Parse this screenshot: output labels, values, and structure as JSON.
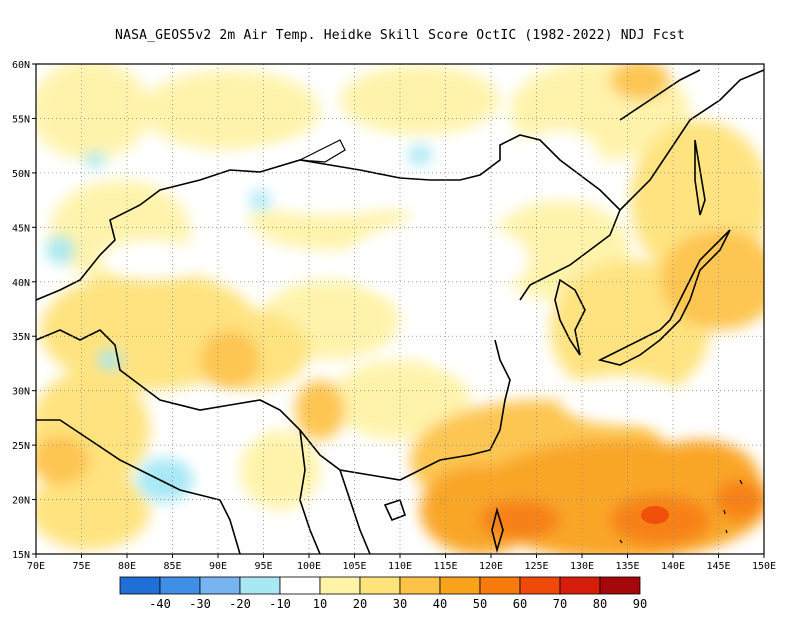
{
  "title": "NASA_GEOS5v2  2m Air Temp. Heidke Skill Score OctIC (1982-2022) NDJ Fcst",
  "map": {
    "lon_ticks": [
      "70E",
      "75E",
      "80E",
      "85E",
      "90E",
      "95E",
      "100E",
      "105E",
      "110E",
      "115E",
      "120E",
      "125E",
      "130E",
      "135E",
      "140E",
      "145E",
      "150E"
    ],
    "lat_ticks": [
      "60N",
      "55N",
      "50N",
      "45N",
      "40N",
      "35N",
      "30N",
      "25N",
      "20N",
      "15N"
    ],
    "lon_range": [
      70,
      150
    ],
    "lat_range": [
      15,
      60
    ],
    "grid": "dotted"
  },
  "colorbar": {
    "colors": [
      "#1f6fd6",
      "#3f8fe6",
      "#78b4f2",
      "#a8e8f5",
      "#ffffff",
      "#fff3a8",
      "#ffe27a",
      "#fdc348",
      "#f9a21c",
      "#f77a0d",
      "#f04a0a",
      "#d61e0a",
      "#a6070a"
    ],
    "labels": [
      "-40",
      "-30",
      "-20",
      "-10",
      "10",
      "20",
      "30",
      "40",
      "50",
      "60",
      "70",
      "80",
      "90"
    ]
  }
}
